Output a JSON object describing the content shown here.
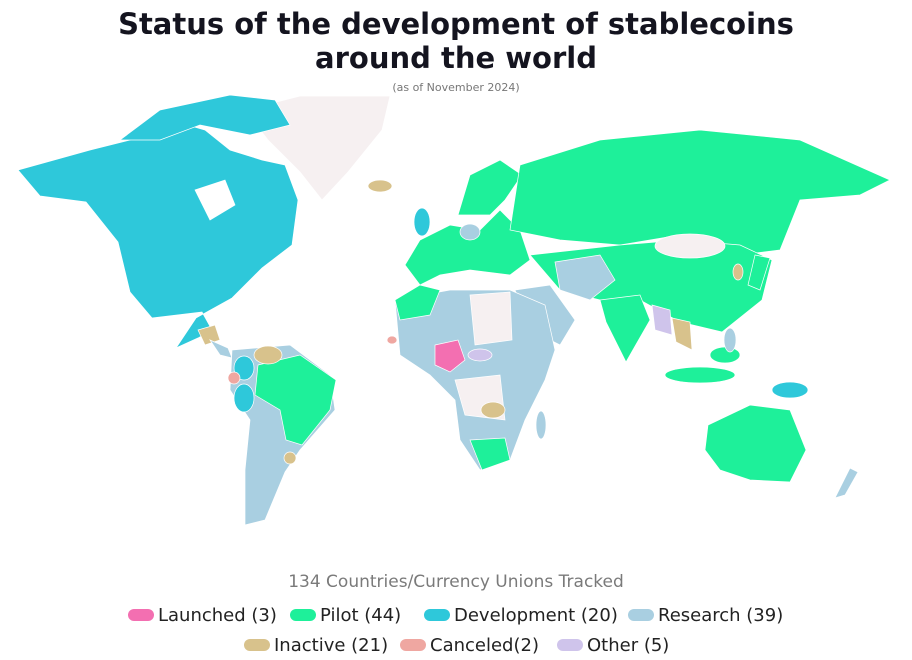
{
  "title_line_1": "Status of the development of stablecoins",
  "title_line_2": "around the world",
  "subtitle": "(as of November 2024)",
  "legend": {
    "title": "134 Countries/Currency Unions Tracked",
    "items": [
      {
        "label": "Launched (3)",
        "color": "#f36fb1"
      },
      {
        "label": "Pilot (44)",
        "color": "#1ef09a"
      },
      {
        "label": "Development (20)",
        "color": "#2ec8da"
      },
      {
        "label": "Research (39)",
        "color": "#a9cfe1"
      },
      {
        "label": "Inactive (21)",
        "color": "#d8c28c"
      },
      {
        "label": "Canceled(2)",
        "color": "#efa7a1"
      },
      {
        "label": "Other (5)",
        "color": "#cfc4eb"
      }
    ]
  }
}
